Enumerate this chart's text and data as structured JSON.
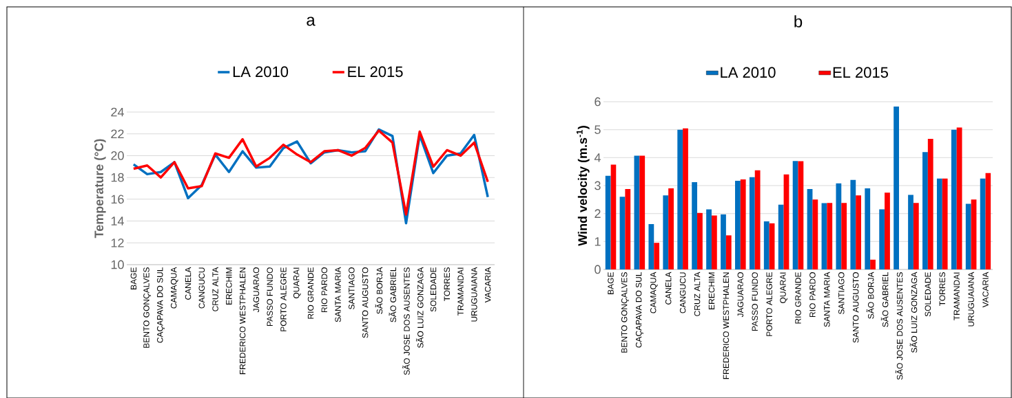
{
  "chart_data": [
    {
      "type": "line",
      "title": "a",
      "ylabel": "Temperature (°C)",
      "categories": [
        "BAGE",
        "BENTO GONÇALVES",
        "CAÇAPAVA DO SUL",
        "CAMAQUA",
        "CANELA",
        "CANGUCU",
        "CRUZ ALTA",
        "ERECHIM",
        "FREDERICO WESTPHALEN",
        "JAGUARAO",
        "PASSO FUNDO",
        "PORTO ALEGRE",
        "QUARAI",
        "RIO GRANDE",
        "RIO PARDO",
        "SANTA MARIA",
        "SANTIAGO",
        "SANTO AUGUSTO",
        "SÃO BORJA",
        "SÃO GABRIEL",
        "SÃO JOSE DOS AUSENTES",
        "SÃO LUIZ GONZAGA",
        "SOLEDADE",
        "TORRES",
        "TRAMANDAI",
        "URUGUAIANA",
        "VACARIA"
      ],
      "series": [
        {
          "name": "LA 2010",
          "color": "#0070c0",
          "values": [
            19.2,
            18.3,
            18.5,
            19.4,
            16.1,
            17.3,
            20.1,
            18.5,
            20.4,
            18.9,
            19.0,
            20.7,
            21.3,
            19.3,
            20.3,
            20.5,
            20.3,
            20.4,
            22.4,
            21.8,
            13.8,
            21.9,
            18.4,
            20.0,
            20.2,
            21.9,
            16.2
          ]
        },
        {
          "name": "EL 2015",
          "color": "#ff0000",
          "values": [
            18.8,
            19.1,
            18.0,
            19.4,
            17.0,
            17.2,
            20.2,
            19.8,
            21.5,
            19.0,
            19.8,
            21.0,
            20.1,
            19.4,
            20.4,
            20.5,
            20.0,
            20.7,
            22.3,
            21.2,
            14.6,
            22.2,
            19.0,
            20.5,
            20.0,
            21.2,
            17.6
          ]
        }
      ],
      "ylim": [
        10,
        24
      ],
      "yticks": [
        10,
        12,
        14,
        16,
        18,
        20,
        22,
        24
      ],
      "grid": "y",
      "legend": "top",
      "line_style": "solid",
      "marker": "none"
    },
    {
      "type": "bar",
      "title": "b",
      "ylabel": "Wind velocity (m.s$^{-1}$)",
      "categories": [
        "BAGE",
        "BENTO GONÇALVES",
        "CAÇAPAVA DO SUL",
        "CAMAQUA",
        "CANELA",
        "CANGUCU",
        "CRUZ ALTA",
        "ERECHIM",
        "FREDERICO WESTPHALEN",
        "JAGUARAO",
        "PASSO FUNDO",
        "PORTO ALEGRE",
        "QUARAI",
        "RIO GRANDE",
        "RIO PARDO",
        "SANTA MARIA",
        "SANTIAGO",
        "SANTO AUGUSTO",
        "SÃO BORJA",
        "SÃO GABRIEL",
        "SÃO JOSE DOS AUSENTES",
        "SÃO LUIZ GONZAGA",
        "SOLEDADE",
        "TORRES",
        "TRAMANDAI",
        "URUGUAIANA",
        "VACARIA"
      ],
      "series": [
        {
          "name": "LA 2010",
          "color": "#0070c0",
          "values": [
            3.35,
            2.6,
            4.07,
            1.62,
            2.65,
            5.0,
            3.12,
            2.15,
            1.97,
            3.17,
            3.3,
            1.72,
            2.32,
            3.88,
            2.88,
            2.37,
            3.08,
            3.2,
            2.9,
            2.15,
            5.83,
            2.67,
            4.2,
            3.25,
            5.0,
            2.35,
            3.25
          ]
        },
        {
          "name": "EL 2015",
          "color": "#ff0000",
          "values": [
            3.75,
            2.88,
            4.07,
            0.95,
            2.9,
            5.05,
            2.02,
            1.93,
            1.22,
            3.22,
            3.55,
            1.65,
            3.4,
            3.87,
            2.5,
            2.38,
            2.38,
            2.65,
            0.35,
            2.75,
            null,
            2.38,
            4.67,
            3.25,
            5.08,
            2.5,
            3.45
          ]
        }
      ],
      "ylim": [
        0,
        6
      ],
      "yticks": [
        0,
        1,
        2,
        3,
        4,
        5,
        6
      ],
      "grid": "y",
      "legend": "top"
    }
  ]
}
